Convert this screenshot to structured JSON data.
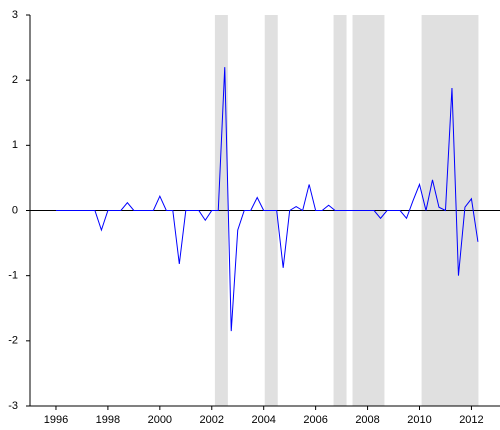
{
  "chart_data": {
    "type": "line",
    "x": [
      1996,
      1996.25,
      1996.5,
      1996.75,
      1997,
      1997.25,
      1997.5,
      1997.75,
      1998,
      1998.25,
      1998.5,
      1998.75,
      1999,
      1999.25,
      1999.5,
      1999.75,
      2000,
      2000.25,
      2000.5,
      2000.75,
      2001,
      2001.25,
      2001.5,
      2001.75,
      2002,
      2002.25,
      2002.5,
      2002.75,
      2003,
      2003.25,
      2003.5,
      2003.75,
      2004,
      2004.25,
      2004.5,
      2004.75,
      2005,
      2005.25,
      2005.5,
      2005.75,
      2006,
      2006.25,
      2006.5,
      2006.75,
      2007,
      2007.25,
      2007.5,
      2007.75,
      2008,
      2008.25,
      2008.5,
      2008.75,
      2009,
      2009.25,
      2009.5,
      2009.75,
      2010,
      2010.25,
      2010.5,
      2010.75,
      2011,
      2011.25,
      2011.5,
      2011.75,
      2012,
      2012.25
    ],
    "series": [
      {
        "color": "#0000ff",
        "values": [
          0,
          0,
          0,
          0,
          0,
          0,
          0,
          -0.3,
          0,
          0,
          0,
          0.12,
          0,
          0,
          0,
          0,
          0.22,
          0,
          0,
          -0.82,
          0,
          0,
          0,
          -0.15,
          0,
          0,
          2.2,
          -1.85,
          -0.3,
          0,
          0,
          0.2,
          0,
          0,
          0,
          -0.88,
          0,
          0.06,
          0,
          0.4,
          0,
          0,
          0.08,
          0,
          0,
          0,
          0,
          0,
          0,
          0,
          -0.12,
          0,
          0,
          0,
          -0.12,
          0.15,
          0.4,
          0,
          0.47,
          0.05,
          0,
          1.88,
          -1.0,
          0.05,
          0.18,
          -0.48
        ]
      }
    ],
    "shaded_regions": [
      [
        2002.12,
        2002.62
      ],
      [
        2004.04,
        2004.54
      ],
      [
        2006.69,
        2007.19
      ],
      [
        2007.42,
        2008.65
      ],
      [
        2010.08,
        2012.27
      ]
    ],
    "shade_color": "#e0e0e0",
    "xlim": [
      1995.0,
      2013.1
    ],
    "xticks": [
      1996,
      1998,
      2000,
      2002,
      2004,
      2006,
      2008,
      2010,
      2012
    ],
    "ylim": [
      -3,
      3
    ],
    "yticks": [
      -3,
      -2,
      -1,
      0,
      1,
      2,
      3
    ]
  }
}
